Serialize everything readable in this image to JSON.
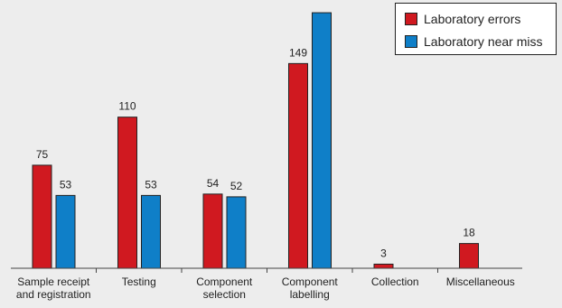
{
  "chart_data": {
    "type": "bar",
    "categories": [
      [
        "Sample receipt",
        "and registration"
      ],
      [
        "Testing"
      ],
      [
        "Component",
        "selection"
      ],
      [
        "Component",
        "labelling"
      ],
      [
        "Collection"
      ],
      [
        "Miscellaneous"
      ]
    ],
    "series": [
      {
        "name": "Laboratory errors",
        "color": "#d01920",
        "values": [
          75,
          110,
          54,
          149,
          3,
          18
        ],
        "labels": [
          "75",
          "110",
          "54",
          "149",
          "3",
          "18"
        ]
      },
      {
        "name": "Laboratory near miss",
        "color": "#0f7fc8",
        "values": [
          53,
          53,
          52,
          186,
          null,
          null
        ],
        "labels": [
          "53",
          "53",
          "52",
          "",
          "",
          ""
        ]
      }
    ],
    "ylim": [
      0,
      190
    ],
    "legend_position": "top-right",
    "grid": false
  }
}
